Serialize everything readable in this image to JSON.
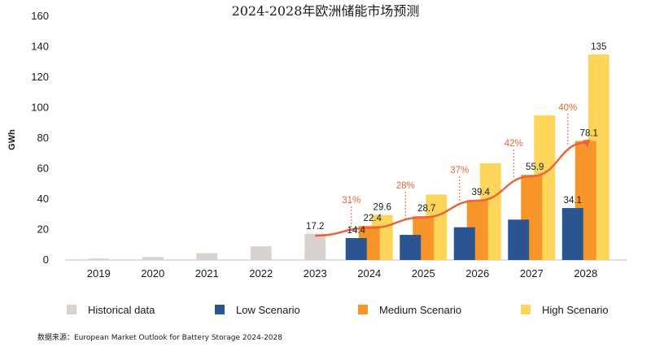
{
  "chart_data": {
    "type": "bar",
    "title": "2024-2028年欧洲储能市场预测",
    "ylabel": "GWh",
    "xlabel": "",
    "ylim": [
      0,
      160
    ],
    "yticks": [
      0,
      20,
      40,
      60,
      80,
      100,
      120,
      140,
      160
    ],
    "categories": [
      "2019",
      "2020",
      "2021",
      "2022",
      "2023",
      "2024",
      "2025",
      "2026",
      "2027",
      "2028"
    ],
    "series": [
      {
        "name": "Historical data",
        "color": "#d9d3d0",
        "values": [
          1,
          2,
          4.5,
          9,
          17.2,
          null,
          null,
          null,
          null,
          null
        ]
      },
      {
        "name": "Low Scenario",
        "color": "#2a5590",
        "values": [
          null,
          null,
          null,
          null,
          null,
          14.4,
          16.5,
          21.5,
          26.5,
          34.1
        ]
      },
      {
        "name": "Medium Scenario",
        "color": "#f7952a",
        "values": [
          null,
          null,
          null,
          null,
          null,
          22.4,
          28.7,
          39.4,
          55.9,
          78.1
        ]
      },
      {
        "name": "High Scenario",
        "color": "#fdd55a",
        "values": [
          null,
          null,
          null,
          null,
          null,
          29.6,
          43,
          63.5,
          95,
          135
        ]
      }
    ],
    "data_labels": [
      {
        "category": "2023",
        "series": "Historical data",
        "text": "17.2"
      },
      {
        "category": "2024",
        "series": "Low Scenario",
        "text": "14.4"
      },
      {
        "category": "2024",
        "series": "Medium Scenario",
        "text": "22.4"
      },
      {
        "category": "2024",
        "series": "High Scenario",
        "text": "29.6"
      },
      {
        "category": "2025",
        "series": "Medium Scenario",
        "text": "28.7"
      },
      {
        "category": "2026",
        "series": "Medium Scenario",
        "text": "39.4"
      },
      {
        "category": "2027",
        "series": "Medium Scenario",
        "text": "55.9"
      },
      {
        "category": "2028",
        "series": "Low Scenario",
        "text": "34.1"
      },
      {
        "category": "2028",
        "series": "Medium Scenario",
        "text": "78.1"
      },
      {
        "category": "2028",
        "series": "High Scenario",
        "text": "135"
      }
    ],
    "growth_line": {
      "color": "#e8643a",
      "points": [
        {
          "category": "2023",
          "value": 16
        },
        {
          "category": "2024",
          "value": 21
        },
        {
          "category": "2025",
          "value": 28
        },
        {
          "category": "2026",
          "value": 39
        },
        {
          "category": "2027",
          "value": 55
        },
        {
          "category": "2028",
          "value": 77
        }
      ],
      "labels": [
        {
          "category": "2024",
          "text": "31%"
        },
        {
          "category": "2025",
          "text": "28%"
        },
        {
          "category": "2026",
          "text": "37%"
        },
        {
          "category": "2027",
          "text": "42%"
        },
        {
          "category": "2028",
          "text": "40%"
        }
      ]
    },
    "legend_position": "bottom",
    "grid": false
  },
  "source_text": "数据来源：European Market Outlook for Battery Storage 2024-2028"
}
